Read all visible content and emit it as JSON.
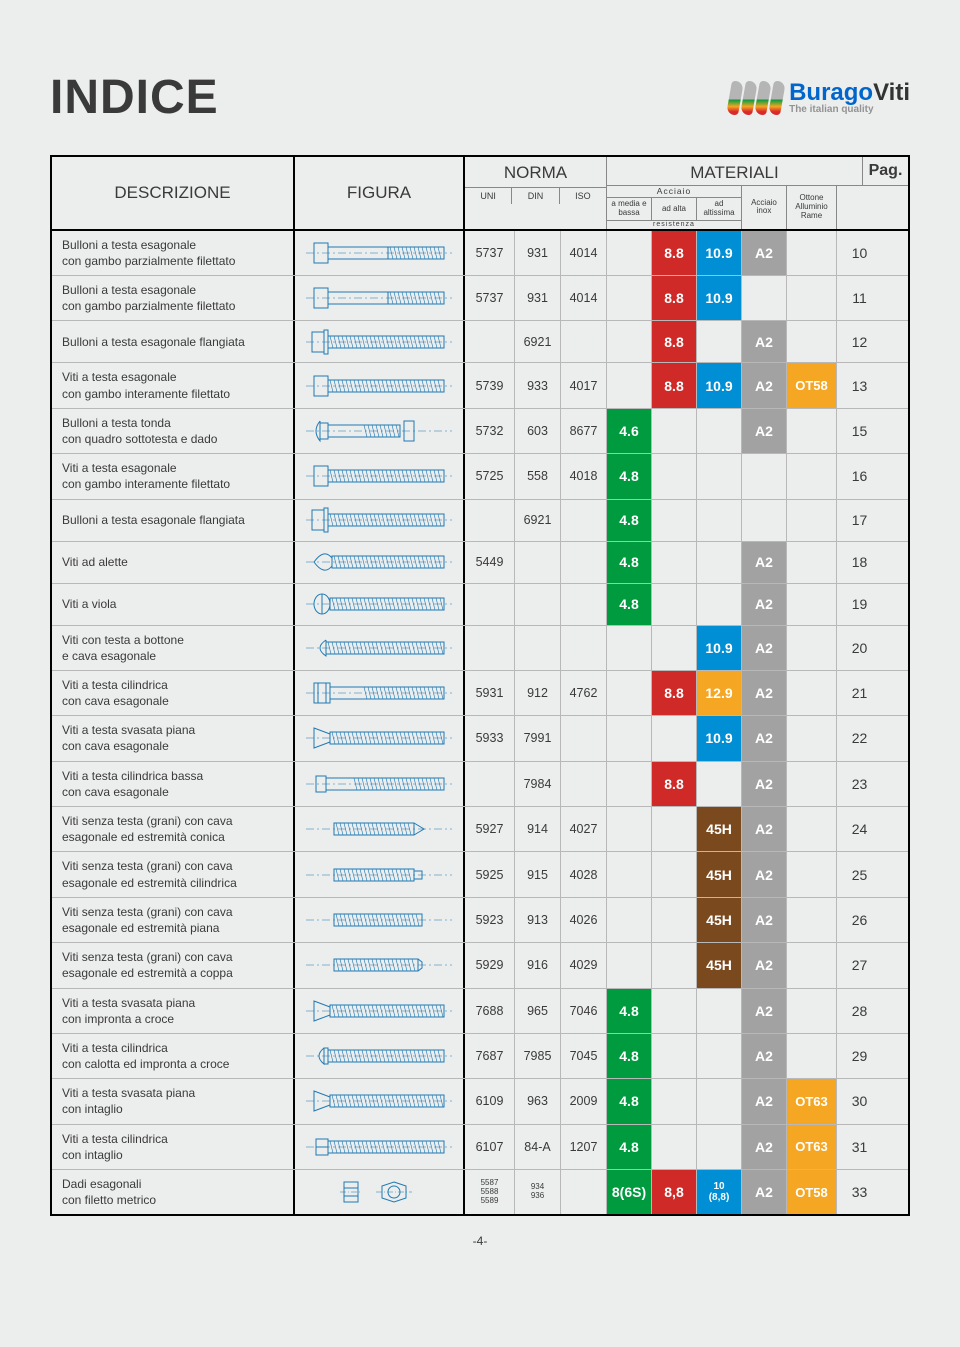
{
  "page": {
    "title": "INDICE",
    "page_number": "-4-",
    "logo_main1": "Burago",
    "logo_main2": "Viti",
    "logo_sub": "The italian quality"
  },
  "headers": {
    "descrizione": "DESCRIZIONE",
    "figura": "FIGURA",
    "norma": "NORMA",
    "uni": "UNI",
    "din": "DIN",
    "iso": "ISO",
    "materiali": "MATERIALI",
    "acciaio": "Acciaio",
    "media": "a media e bassa",
    "alta": "ad alta",
    "altissima": "ad altissima",
    "resistenza": "resistenza",
    "inox": "Acciaio inox",
    "ottone": "Ottone Alluminio Rame",
    "pag": "Pag."
  },
  "colors": {
    "green": "#009b3e",
    "red": "#cf2a27",
    "blue": "#008fd5",
    "yellow": "#f5a623",
    "grey": "#a2a2a2",
    "brown": "#7a4a1e",
    "ink": "#1f7ab4"
  },
  "rows": [
    {
      "desc": "Bulloni a testa esagonale\ncon gambo parzialmente filettato",
      "uni": "5737",
      "din": "931",
      "iso": "4014",
      "media": "",
      "media_c": "",
      "alta": "8.8",
      "alta_c": "red",
      "altis": "10.9",
      "altis_c": "blue",
      "inox": "A2",
      "inox_c": "grey",
      "ottone": "",
      "ottone_c": "",
      "pag": "10",
      "fig": "hex_part"
    },
    {
      "desc": "Bulloni a testa esagonale\ncon gambo parzialmente filettato",
      "uni": "5737",
      "din": "931",
      "iso": "4014",
      "media": "",
      "media_c": "",
      "alta": "8.8",
      "alta_c": "red",
      "altis": "10.9",
      "altis_c": "blue",
      "inox": "",
      "inox_c": "",
      "ottone": "",
      "ottone_c": "",
      "pag": "11",
      "fig": "hex_part"
    },
    {
      "desc": "Bulloni a testa esagonale flangiata",
      "uni": "",
      "din": "6921",
      "iso": "",
      "media": "",
      "media_c": "",
      "alta": "8.8",
      "alta_c": "red",
      "altis": "",
      "altis_c": "",
      "inox": "A2",
      "inox_c": "grey",
      "ottone": "",
      "ottone_c": "",
      "pag": "12",
      "fig": "flange"
    },
    {
      "desc": "Viti a testa esagonale\ncon gambo interamente filettato",
      "uni": "5739",
      "din": "933",
      "iso": "4017",
      "media": "",
      "media_c": "",
      "alta": "8.8",
      "alta_c": "red",
      "altis": "10.9",
      "altis_c": "blue",
      "inox": "A2",
      "inox_c": "grey",
      "ottone": "OT58",
      "ottone_c": "yellow",
      "pag": "13",
      "fig": "hex_full"
    },
    {
      "desc": "Bulloni a testa tonda\ncon quadro sottotesta e dado",
      "uni": "5732",
      "din": "603",
      "iso": "8677",
      "media": "4.6",
      "media_c": "green",
      "alta": "",
      "alta_c": "",
      "altis": "",
      "altis_c": "",
      "inox": "A2",
      "inox_c": "grey",
      "ottone": "",
      "ottone_c": "",
      "pag": "15",
      "fig": "round_sq"
    },
    {
      "desc": "Viti a testa esagonale\ncon gambo interamente filettato",
      "uni": "5725",
      "din": "558",
      "iso": "4018",
      "media": "4.8",
      "media_c": "green",
      "alta": "",
      "alta_c": "",
      "altis": "",
      "altis_c": "",
      "inox": "",
      "inox_c": "",
      "ottone": "",
      "ottone_c": "",
      "pag": "16",
      "fig": "hex_full"
    },
    {
      "desc": "Bulloni a testa esagonale flangiata",
      "uni": "",
      "din": "6921",
      "iso": "",
      "media": "4.8",
      "media_c": "green",
      "alta": "",
      "alta_c": "",
      "altis": "",
      "altis_c": "",
      "inox": "",
      "inox_c": "",
      "ottone": "",
      "ottone_c": "",
      "pag": "17",
      "fig": "flange"
    },
    {
      "desc": "Viti  ad alette",
      "uni": "5449",
      "din": "",
      "iso": "",
      "media": "4.8",
      "media_c": "green",
      "alta": "",
      "alta_c": "",
      "altis": "",
      "altis_c": "",
      "inox": "A2",
      "inox_c": "grey",
      "ottone": "",
      "ottone_c": "",
      "pag": "18",
      "fig": "wing"
    },
    {
      "desc": "Viti  a viola",
      "uni": "",
      "din": "",
      "iso": "",
      "media": "4.8",
      "media_c": "green",
      "alta": "",
      "alta_c": "",
      "altis": "",
      "altis_c": "",
      "inox": "A2",
      "inox_c": "grey",
      "ottone": "",
      "ottone_c": "",
      "pag": "19",
      "fig": "viola"
    },
    {
      "desc": "Viti con testa a bottone\ne cava esagonale",
      "uni": "",
      "din": "",
      "iso": "",
      "media": "",
      "media_c": "",
      "alta": "",
      "alta_c": "",
      "altis": "10.9",
      "altis_c": "blue",
      "inox": "A2",
      "inox_c": "grey",
      "ottone": "",
      "ottone_c": "",
      "pag": "20",
      "fig": "button"
    },
    {
      "desc": "Viti a testa cilindrica\ncon cava esagonale",
      "uni": "5931",
      "din": "912",
      "iso": "4762",
      "media": "",
      "media_c": "",
      "alta": "8.8",
      "alta_c": "red",
      "altis": "12.9",
      "altis_c": "yellow",
      "inox": "A2",
      "inox_c": "grey",
      "ottone": "",
      "ottone_c": "",
      "pag": "21",
      "fig": "cyl_hex"
    },
    {
      "desc": "Viti a testa svasata piana\ncon cava esagonale",
      "uni": "5933",
      "din": "7991",
      "iso": "",
      "media": "",
      "media_c": "",
      "alta": "",
      "alta_c": "",
      "altis": "10.9",
      "altis_c": "blue",
      "inox": "A2",
      "inox_c": "grey",
      "ottone": "",
      "ottone_c": "",
      "pag": "22",
      "fig": "flat_hex"
    },
    {
      "desc": "Viti a testa cilindrica bassa\ncon cava esagonale",
      "uni": "",
      "din": "7984",
      "iso": "",
      "media": "",
      "media_c": "",
      "alta": "8.8",
      "alta_c": "red",
      "altis": "",
      "altis_c": "",
      "inox": "A2",
      "inox_c": "grey",
      "ottone": "",
      "ottone_c": "",
      "pag": "23",
      "fig": "low_cyl"
    },
    {
      "desc": "Viti senza testa (grani) con cava\nesagonale  ed estremità conica",
      "uni": "5927",
      "din": "914",
      "iso": "4027",
      "media": "",
      "media_c": "",
      "alta": "",
      "alta_c": "",
      "altis": "45H",
      "altis_c": "brown",
      "inox": "A2",
      "inox_c": "grey",
      "ottone": "",
      "ottone_c": "",
      "pag": "24",
      "fig": "grub_cone"
    },
    {
      "desc": "Viti senza testa (grani) con cava\nesagonale  ed estremità cilindrica",
      "uni": "5925",
      "din": "915",
      "iso": "4028",
      "media": "",
      "media_c": "",
      "alta": "",
      "alta_c": "",
      "altis": "45H",
      "altis_c": "brown",
      "inox": "A2",
      "inox_c": "grey",
      "ottone": "",
      "ottone_c": "",
      "pag": "25",
      "fig": "grub_cyl"
    },
    {
      "desc": "Viti senza testa (grani) con cava\nesagonale  ed estremità piana",
      "uni": "5923",
      "din": "913",
      "iso": "4026",
      "media": "",
      "media_c": "",
      "alta": "",
      "alta_c": "",
      "altis": "45H",
      "altis_c": "brown",
      "inox": "A2",
      "inox_c": "grey",
      "ottone": "",
      "ottone_c": "",
      "pag": "26",
      "fig": "grub_flat"
    },
    {
      "desc": "Viti senza testa (grani) con cava\nesagonale  ed estremità a coppa",
      "uni": "5929",
      "din": "916",
      "iso": "4029",
      "media": "",
      "media_c": "",
      "alta": "",
      "alta_c": "",
      "altis": "45H",
      "altis_c": "brown",
      "inox": "A2",
      "inox_c": "grey",
      "ottone": "",
      "ottone_c": "",
      "pag": "27",
      "fig": "grub_cup"
    },
    {
      "desc": "Viti a testa svasata piana\ncon impronta a croce",
      "uni": "7688",
      "din": "965",
      "iso": "7046",
      "media": "4.8",
      "media_c": "green",
      "alta": "",
      "alta_c": "",
      "altis": "",
      "altis_c": "",
      "inox": "A2",
      "inox_c": "grey",
      "ottone": "",
      "ottone_c": "",
      "pag": "28",
      "fig": "flat_cross"
    },
    {
      "desc": "Viti a testa cilindrica\ncon calotta ed impronta a croce",
      "uni": "7687",
      "din": "7985",
      "iso": "7045",
      "media": "4.8",
      "media_c": "green",
      "alta": "",
      "alta_c": "",
      "altis": "",
      "altis_c": "",
      "inox": "A2",
      "inox_c": "grey",
      "ottone": "",
      "ottone_c": "",
      "pag": "29",
      "fig": "pan_cross"
    },
    {
      "desc": "Viti a testa svasata piana\ncon intaglio",
      "uni": "6109",
      "din": "963",
      "iso": "2009",
      "media": "4.8",
      "media_c": "green",
      "alta": "",
      "alta_c": "",
      "altis": "",
      "altis_c": "",
      "inox": "A2",
      "inox_c": "grey",
      "ottone": "OT63",
      "ottone_c": "yellow",
      "pag": "30",
      "fig": "flat_slot"
    },
    {
      "desc": "Viti a testa cilindrica\ncon intaglio",
      "uni": "6107",
      "din": "84-A",
      "iso": "1207",
      "media": "4.8",
      "media_c": "green",
      "alta": "",
      "alta_c": "",
      "altis": "",
      "altis_c": "",
      "inox": "A2",
      "inox_c": "grey",
      "ottone": "OT63",
      "ottone_c": "yellow",
      "pag": "31",
      "fig": "cyl_slot"
    },
    {
      "desc": "Dadi esagonali\ncon filetto metrico",
      "uni": "5587\n5588\n5589",
      "din": "934\n936",
      "iso": "",
      "media": "8(6S)",
      "media_c": "green",
      "alta": "8,8",
      "alta_c": "red",
      "altis": "10\n(8,8)",
      "altis_c": "blue",
      "inox": "A2",
      "inox_c": "grey",
      "ottone": "OT58",
      "ottone_c": "yellow",
      "pag": "33",
      "fig": "nut"
    }
  ]
}
